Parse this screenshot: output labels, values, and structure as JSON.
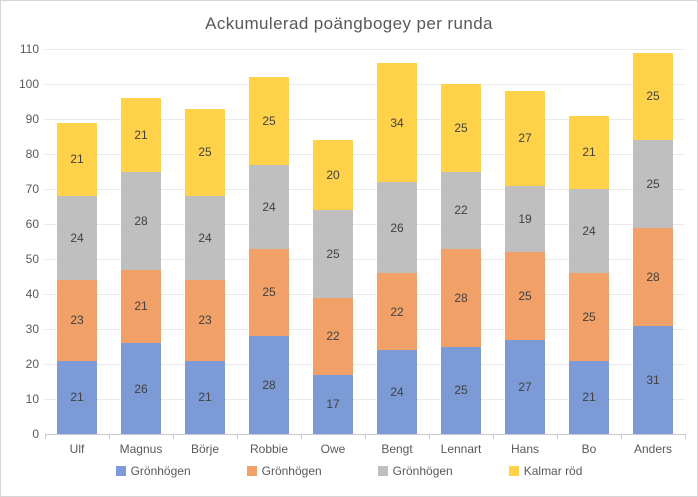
{
  "chart_data": {
    "type": "bar",
    "stacked": true,
    "title": "Ackumulerad poängbogey per runda",
    "categories": [
      "Ulf",
      "Magnus",
      "Börje",
      "Robbie",
      "Owe",
      "Bengt",
      "Lennart",
      "Hans",
      "Bo",
      "Anders"
    ],
    "series": [
      {
        "name": "Grönhögen",
        "color": "#7C9AD5",
        "values": [
          21,
          26,
          21,
          28,
          17,
          24,
          25,
          27,
          21,
          31
        ]
      },
      {
        "name": "Grönhögen",
        "color": "#F1A168",
        "values": [
          23,
          21,
          23,
          25,
          22,
          22,
          28,
          25,
          25,
          28
        ]
      },
      {
        "name": "Grönhögen",
        "color": "#BFBFBF",
        "values": [
          24,
          28,
          24,
          24,
          25,
          26,
          22,
          19,
          24,
          25
        ]
      },
      {
        "name": "Kalmar röd",
        "color": "#FFD24A",
        "values": [
          21,
          21,
          25,
          25,
          20,
          34,
          25,
          27,
          21,
          25
        ]
      }
    ],
    "totals": [
      89,
      96,
      93,
      102,
      84,
      106,
      100,
      98,
      91,
      109
    ],
    "ylim": [
      0,
      110
    ],
    "ytick_step": 10,
    "ytick_labels": [
      "0",
      "10",
      "20",
      "30",
      "40",
      "50",
      "60",
      "70",
      "80",
      "90",
      "100",
      "110"
    ],
    "grid": true,
    "legend_position": "bottom"
  }
}
